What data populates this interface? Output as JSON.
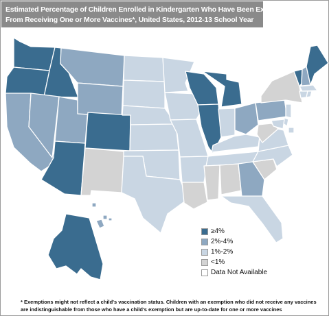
{
  "title": {
    "line1": "Estimated Percentage of Children Enrolled in Kindergarten Who Have Been Exempted",
    "line2": "From Receiving One or More Vaccines*, United States, 2012-13 School Year"
  },
  "categories": {
    "high": {
      "label": "≥4%",
      "color": "#3a6c8f"
    },
    "mid": {
      "label": "2%-4%",
      "color": "#8ea8c1"
    },
    "low": {
      "label": "1%-2%",
      "color": "#c9d6e3"
    },
    "vlow": {
      "label": "<1%",
      "color": "#d3d3d3"
    },
    "na": {
      "label": "Data Not Available",
      "color": "#ffffff"
    }
  },
  "states": {
    "WA": "high",
    "OR": "high",
    "ID": "high",
    "CO": "high",
    "AZ": "high",
    "WI": "high",
    "MI": "high",
    "IL": "high",
    "VT": "high",
    "ME": "high",
    "AK": "high",
    "CA": "mid",
    "NV": "mid",
    "UT": "mid",
    "MT": "mid",
    "WY": "mid",
    "OH": "mid",
    "PA": "mid",
    "GA": "mid",
    "HI": "mid",
    "NH": "mid",
    "ND": "low",
    "SD": "low",
    "NE": "low",
    "KS": "low",
    "OK": "low",
    "TX": "low",
    "MN": "low",
    "IA": "low",
    "MO": "low",
    "AR": "low",
    "IN": "low",
    "KY": "low",
    "TN": "low",
    "FL": "low",
    "NC": "low",
    "VA": "low",
    "MD": "low",
    "CT": "low",
    "MA": "low",
    "RI": "low",
    "NJ": "low",
    "DE": "low",
    "DC": "low",
    "NM": "vlow",
    "LA": "vlow",
    "MS": "vlow",
    "AL": "vlow",
    "SC": "vlow",
    "WV": "vlow",
    "NY": "vlow"
  },
  "legend": [
    "high",
    "mid",
    "low",
    "vlow",
    "na"
  ],
  "footnote": {
    "line1": "* Exemptions might not reflect a child's vaccination status. Children with an exemption who did not receive any vaccines",
    "line2": "are indistinguishable from those who have a child's exemption but are up-to-date for one or more vaccines"
  }
}
